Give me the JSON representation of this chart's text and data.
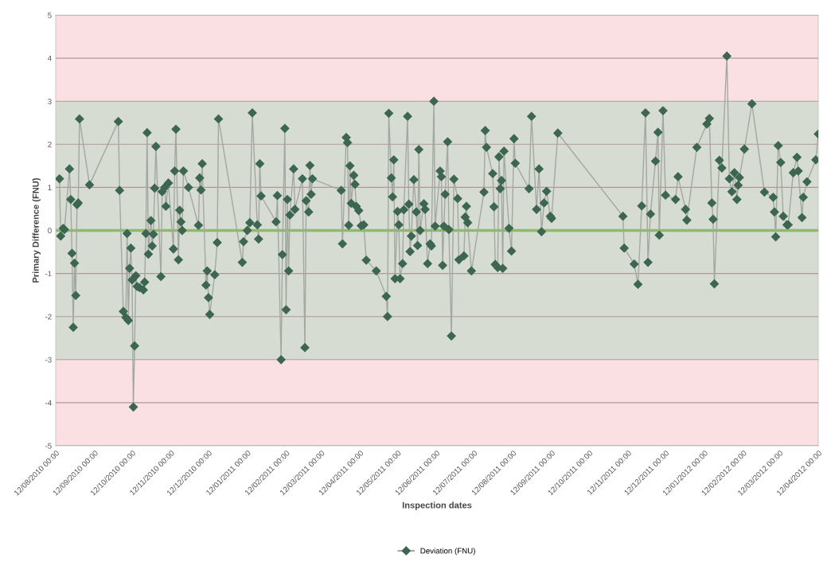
{
  "chart_data": {
    "type": "line",
    "xlabel": "Inspection dates",
    "ylabel": "Primary Difference (FNU)",
    "xlim": [
      "2010-08-12",
      "2012-04-12"
    ],
    "xticks": [
      {
        "value": "2010-08-12",
        "label": "12/08/2010 00:00"
      },
      {
        "value": "2010-09-12",
        "label": "12/09/2010 00:00"
      },
      {
        "value": "2010-10-12",
        "label": "12/10/2010 00:00"
      },
      {
        "value": "2010-11-12",
        "label": "12/11/2010 00:00"
      },
      {
        "value": "2010-12-12",
        "label": "12/12/2010 00:00"
      },
      {
        "value": "2011-01-12",
        "label": "12/01/2011 00:00"
      },
      {
        "value": "2011-02-12",
        "label": "12/02/2011 00:00"
      },
      {
        "value": "2011-03-12",
        "label": "12/03/2011 00:00"
      },
      {
        "value": "2011-04-12",
        "label": "12/04/2011 00:00"
      },
      {
        "value": "2011-05-12",
        "label": "12/05/2011 00:00"
      },
      {
        "value": "2011-06-12",
        "label": "12/06/2011 00:00"
      },
      {
        "value": "2011-07-12",
        "label": "12/07/2011 00:00"
      },
      {
        "value": "2011-08-12",
        "label": "12/08/2011 00:00"
      },
      {
        "value": "2011-09-12",
        "label": "12/09/2011 00:00"
      },
      {
        "value": "2011-10-12",
        "label": "12/10/2011 00:00"
      },
      {
        "value": "2011-11-12",
        "label": "12/11/2011 00:00"
      },
      {
        "value": "2011-12-12",
        "label": "12/12/2011 00:00"
      },
      {
        "value": "2012-01-12",
        "label": "12/01/2012 00:00"
      },
      {
        "value": "2012-02-12",
        "label": "12/02/2012 00:00"
      },
      {
        "value": "2012-03-12",
        "label": "12/03/2012 00:00"
      },
      {
        "value": "2012-04-12",
        "label": "12/04/2012 00:00"
      }
    ],
    "ylim": [
      -5,
      5
    ],
    "yticks": [
      -5,
      -4,
      -3,
      -2,
      -1,
      0,
      1,
      2,
      3,
      4,
      5
    ],
    "grid": "y",
    "legend": "bottom",
    "marker": "diamond",
    "line_style": "solid",
    "bands": [
      {
        "axis": "y",
        "from": -5,
        "to": -3,
        "color": "#fbe0e3"
      },
      {
        "axis": "y",
        "from": -3,
        "to": 3,
        "color": "#d7dcd2"
      },
      {
        "axis": "y",
        "from": 3,
        "to": 5,
        "color": "#fbe0e3"
      }
    ],
    "ref_lines": [
      {
        "axis": "y",
        "value": 0,
        "color": "#8dba6e"
      }
    ],
    "series": [
      {
        "name": "Deviation (FNU)",
        "color": "#3d6650",
        "x": [
          "2010-08-15",
          "2010-08-16",
          "2010-08-18",
          "2010-08-19",
          "2010-08-23",
          "2010-08-24",
          "2010-08-25",
          "2010-08-26",
          "2010-08-27",
          "2010-08-28",
          "2010-08-29",
          "2010-08-30",
          "2010-08-31",
          "2010-09-08",
          "2010-10-01",
          "2010-10-02",
          "2010-10-05",
          "2010-10-07",
          "2010-10-08",
          "2010-10-09",
          "2010-10-10",
          "2010-10-11",
          "2010-10-12",
          "2010-10-13",
          "2010-10-14",
          "2010-10-15",
          "2010-10-16",
          "2010-10-18",
          "2010-10-21",
          "2010-10-22",
          "2010-10-23",
          "2010-10-24",
          "2010-10-25",
          "2010-10-27",
          "2010-10-28",
          "2010-10-29",
          "2010-10-30",
          "2010-10-31",
          "2010-11-04",
          "2010-11-05",
          "2010-11-07",
          "2010-11-08",
          "2010-11-10",
          "2010-11-14",
          "2010-11-15",
          "2010-11-16",
          "2010-11-18",
          "2010-11-19",
          "2010-11-20",
          "2010-11-21",
          "2010-11-22",
          "2010-11-26",
          "2010-12-04",
          "2010-12-05",
          "2010-12-06",
          "2010-12-07",
          "2010-12-10",
          "2010-12-11",
          "2010-12-12",
          "2010-12-13",
          "2010-12-17",
          "2010-12-19",
          "2010-12-20",
          "2011-01-08",
          "2011-01-09",
          "2011-01-12",
          "2011-01-14",
          "2011-01-16",
          "2011-01-20",
          "2011-01-21",
          "2011-01-22",
          "2011-01-23",
          "2011-02-04",
          "2011-02-05",
          "2011-02-08",
          "2011-02-09",
          "2011-02-11",
          "2011-02-12",
          "2011-02-13",
          "2011-02-14",
          "2011-02-15",
          "2011-02-18",
          "2011-02-19",
          "2011-02-25",
          "2011-02-27",
          "2011-02-28",
          "2011-03-02",
          "2011-03-03",
          "2011-03-04",
          "2011-03-05",
          "2011-03-28",
          "2011-03-29",
          "2011-04-01",
          "2011-04-02",
          "2011-04-03",
          "2011-04-04",
          "2011-04-05",
          "2011-04-07",
          "2011-04-08",
          "2011-04-09",
          "2011-04-11",
          "2011-04-13",
          "2011-04-15",
          "2011-04-17",
          "2011-04-25",
          "2011-05-03",
          "2011-05-04",
          "2011-05-05",
          "2011-05-07",
          "2011-05-08",
          "2011-05-09",
          "2011-05-10",
          "2011-05-12",
          "2011-05-13",
          "2011-05-14",
          "2011-05-16",
          "2011-05-17",
          "2011-05-20",
          "2011-05-21",
          "2011-05-22",
          "2011-05-23",
          "2011-05-25",
          "2011-05-27",
          "2011-05-28",
          "2011-05-29",
          "2011-05-30",
          "2011-06-02",
          "2011-06-03",
          "2011-06-05",
          "2011-06-07",
          "2011-06-08",
          "2011-06-10",
          "2011-06-11",
          "2011-06-15",
          "2011-06-16",
          "2011-06-17",
          "2011-06-18",
          "2011-06-19",
          "2011-06-21",
          "2011-06-22",
          "2011-06-24",
          "2011-06-26",
          "2011-06-29",
          "2011-06-30",
          "2011-07-04",
          "2011-07-05",
          "2011-07-06",
          "2011-07-07",
          "2011-07-10",
          "2011-07-20",
          "2011-07-21",
          "2011-07-22",
          "2011-07-27",
          "2011-07-28",
          "2011-07-29",
          "2011-07-31",
          "2011-08-01",
          "2011-08-02",
          "2011-08-03",
          "2011-08-04",
          "2011-08-05",
          "2011-08-09",
          "2011-08-11",
          "2011-08-13",
          "2011-08-14",
          "2011-08-25",
          "2011-08-27",
          "2011-08-31",
          "2011-09-02",
          "2011-09-04",
          "2011-09-06",
          "2011-09-08",
          "2011-09-11",
          "2011-09-12",
          "2011-09-17",
          "2011-11-08",
          "2011-11-09",
          "2011-11-17",
          "2011-11-20",
          "2011-11-23",
          "2011-11-26",
          "2011-11-28",
          "2011-11-30",
          "2011-12-04",
          "2011-12-06",
          "2011-12-07",
          "2011-12-10",
          "2011-12-12",
          "2011-12-20",
          "2011-12-22",
          "2011-12-28",
          "2011-12-29",
          "2012-01-06",
          "2012-01-14",
          "2012-01-16",
          "2012-01-18",
          "2012-01-19",
          "2012-01-20",
          "2012-01-24",
          "2012-01-26",
          "2012-01-30",
          "2012-02-01",
          "2012-02-03",
          "2012-02-05",
          "2012-02-07",
          "2012-02-08",
          "2012-02-09",
          "2012-02-13",
          "2012-02-19",
          "2012-02-29",
          "2012-03-07",
          "2012-03-08",
          "2012-03-09",
          "2012-03-11",
          "2012-03-13",
          "2012-03-15",
          "2012-03-18",
          "2012-03-19",
          "2012-03-23",
          "2012-03-26",
          "2012-03-27",
          "2012-03-30",
          "2012-03-31",
          "2012-04-03",
          "2012-04-10",
          "2012-04-12"
        ],
        "values": [
          1.2,
          -0.13,
          0.05,
          0.02,
          1.43,
          0.72,
          -0.53,
          -2.25,
          -0.76,
          -1.51,
          0.6,
          0.64,
          2.59,
          1.06,
          2.53,
          0.93,
          -1.88,
          -2.02,
          -0.07,
          -2.09,
          -0.88,
          -0.41,
          -1.15,
          -4.1,
          -2.68,
          -1.05,
          -1.3,
          -1.33,
          -1.38,
          -1.2,
          -0.07,
          2.27,
          -0.55,
          0.23,
          -0.36,
          -0.09,
          0.98,
          1.95,
          -1.07,
          0.9,
          1.0,
          0.56,
          1.1,
          -0.43,
          1.38,
          2.35,
          -0.68,
          0.47,
          0.2,
          0.0,
          1.38,
          1.0,
          0.12,
          1.22,
          0.94,
          1.55,
          -1.27,
          -0.94,
          -1.56,
          -1.95,
          -1.03,
          -0.28,
          2.59,
          -0.74,
          -0.26,
          0.0,
          0.18,
          2.73,
          0.13,
          -0.2,
          1.55,
          0.8,
          0.2,
          0.81,
          -3.0,
          -0.56,
          2.37,
          -1.84,
          0.72,
          -0.94,
          0.36,
          1.43,
          0.49,
          1.2,
          -2.72,
          0.69,
          0.43,
          1.51,
          0.84,
          1.2,
          0.93,
          -0.31,
          2.16,
          2.04,
          0.12,
          1.5,
          0.63,
          1.28,
          1.07,
          0.56,
          0.46,
          0.11,
          0.13,
          -0.69,
          -0.94,
          -1.53,
          -2.0,
          2.72,
          1.22,
          0.78,
          1.64,
          -1.12,
          0.44,
          0.13,
          -1.12,
          -0.77,
          0.48,
          2.65,
          0.61,
          -0.49,
          -0.13,
          1.18,
          0.43,
          -0.35,
          1.88,
          0.0,
          0.62,
          0.49,
          -0.77,
          -0.31,
          -0.36,
          3.0,
          0.1,
          1.38,
          1.25,
          -0.81,
          0.1,
          0.84,
          2.06,
          0.02,
          -2.45,
          1.19,
          0.74,
          -0.68,
          -0.59,
          0.31,
          0.56,
          0.18,
          -0.94,
          0.89,
          2.32,
          1.93,
          1.32,
          0.55,
          -0.79,
          -0.86,
          1.71,
          0.97,
          1.16,
          -0.88,
          1.84,
          0.05,
          -0.48,
          2.13,
          1.56,
          0.97,
          2.65,
          0.49,
          1.43,
          -0.03,
          0.64,
          0.91,
          0.33,
          0.28,
          2.26,
          0.33,
          -0.41,
          -0.78,
          -1.25,
          0.57,
          2.73,
          -0.74,
          0.38,
          1.61,
          2.28,
          -0.11,
          2.78,
          0.82,
          0.72,
          1.25,
          0.49,
          0.24,
          1.93,
          2.47,
          2.6,
          0.64,
          0.26,
          -1.24,
          1.63,
          1.45,
          4.05,
          1.2,
          0.9,
          1.34,
          0.72,
          1.05,
          1.23,
          1.89,
          2.94,
          0.89,
          0.77,
          0.43,
          -0.15,
          1.97,
          1.58,
          0.33,
          0.13,
          0.13,
          1.34,
          1.7,
          1.38,
          0.3,
          0.77,
          1.13,
          1.64,
          2.24
        ]
      }
    ]
  }
}
